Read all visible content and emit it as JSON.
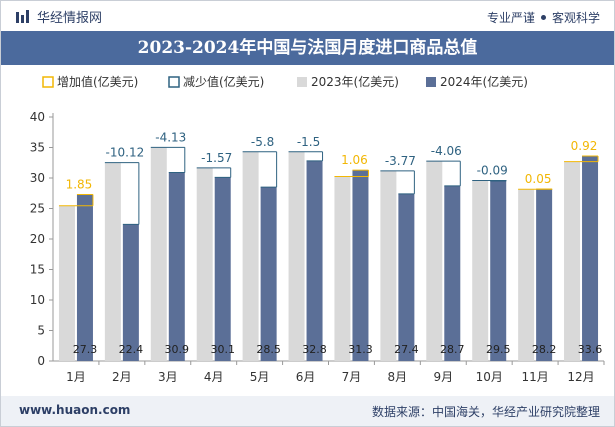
{
  "header": {
    "brand": "华经情报网",
    "tag_left": "专业严谨",
    "tag_right": "客观科学",
    "title": "2023-2024年中国与法国月度进口商品总值"
  },
  "footer": {
    "site": "www.huaon.com",
    "source": "数据来源：中国海关，华经产业研究院整理"
  },
  "colors": {
    "bar_2023": "#d9d9d9",
    "bar_2024": "#5b6f97",
    "increase": "#f2b705",
    "decrease": "#2f6281",
    "title_bg": "#4b6a9d"
  },
  "chart_data": {
    "type": "bar",
    "title": "2023-2024年中国与法国月度进口商品总值",
    "categories": [
      "1月",
      "2月",
      "3月",
      "4月",
      "5月",
      "6月",
      "7月",
      "8月",
      "9月",
      "10月",
      "11月",
      "12月"
    ],
    "series": [
      {
        "name": "2023年(亿美元)",
        "values": [
          25.45,
          32.52,
          35.03,
          31.67,
          34.3,
          34.3,
          30.24,
          31.17,
          32.76,
          29.59,
          28.15,
          32.68
        ]
      },
      {
        "name": "2024年(亿美元)",
        "values": [
          27.3,
          22.4,
          30.9,
          30.1,
          28.5,
          32.8,
          31.3,
          27.4,
          28.7,
          29.5,
          28.2,
          33.6
        ]
      }
    ],
    "change_legend": {
      "increase": "增加值(亿美元)",
      "decrease": "减少值(亿美元)"
    },
    "change_values": [
      1.85,
      -10.12,
      -4.13,
      -1.57,
      -5.8,
      -1.5,
      1.06,
      -3.77,
      -4.06,
      -0.09,
      0.05,
      0.92
    ],
    "change_labels": [
      "1.85",
      "-10.12",
      "-4.13",
      "-1.57",
      "-5.8",
      "-1.5",
      "1.06",
      "-3.77",
      "-4.06",
      "-0.09",
      "0.05",
      "0.92"
    ],
    "value_labels_2024": [
      "27.3",
      "22.4",
      "30.9",
      "30.1",
      "28.5",
      "32.8",
      "31.3",
      "27.4",
      "28.7",
      "29.5",
      "28.2",
      "33.6"
    ],
    "y_ticks": [
      "0",
      "5",
      "10",
      "15",
      "20",
      "25",
      "30",
      "35",
      "40"
    ],
    "ylim": [
      0,
      40
    ],
    "grid": false,
    "legend_position": "top"
  }
}
